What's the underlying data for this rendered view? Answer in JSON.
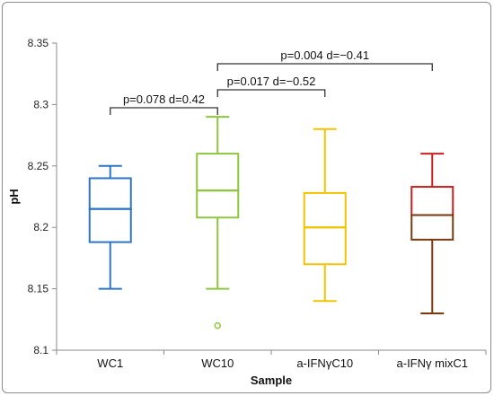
{
  "chart_data": {
    "type": "boxplot",
    "xlabel": "Sample",
    "ylabel": "pH",
    "ylim": [
      8.1,
      8.35
    ],
    "yticks": [
      "8.1",
      "8.15",
      "8.2",
      "8.25",
      "8.3",
      "8.35"
    ],
    "grid": false,
    "categories": [
      "WC1",
      "WC10",
      "a-IFNγC10",
      "a-IFNγ mixC1"
    ],
    "boxes": [
      {
        "category": "WC1",
        "min": 8.15,
        "q1": 8.188,
        "median": 8.215,
        "q3": 8.24,
        "max": 8.25,
        "outliers": [],
        "color": "#2e75c6"
      },
      {
        "category": "WC10",
        "min": 8.15,
        "q1": 8.208,
        "median": 8.23,
        "q3": 8.26,
        "max": 8.29,
        "outliers": [
          8.12
        ],
        "color": "#8fc641"
      },
      {
        "category": "a-IFNγC10",
        "min": 8.14,
        "q1": 8.17,
        "median": 8.2,
        "q3": 8.228,
        "max": 8.28,
        "outliers": [],
        "color": "#f2c300"
      },
      {
        "category": "a-IFNγ mixC1",
        "min": 8.13,
        "q1": 8.19,
        "median": 8.21,
        "q3": 8.233,
        "max": 8.26,
        "outliers": [],
        "color": "#c82020",
        "lower_color": "#7a3a10"
      }
    ],
    "annotations": [
      {
        "label": "p=0.078  d=0.42",
        "from": "WC1",
        "to": "WC10"
      },
      {
        "label": "p=0.017  d=−0.52",
        "from": "WC10",
        "to": "a-IFNγC10"
      },
      {
        "label": "p=0.004  d=−0.41",
        "from": "WC10",
        "to": "a-IFNγ mixC1"
      }
    ]
  }
}
